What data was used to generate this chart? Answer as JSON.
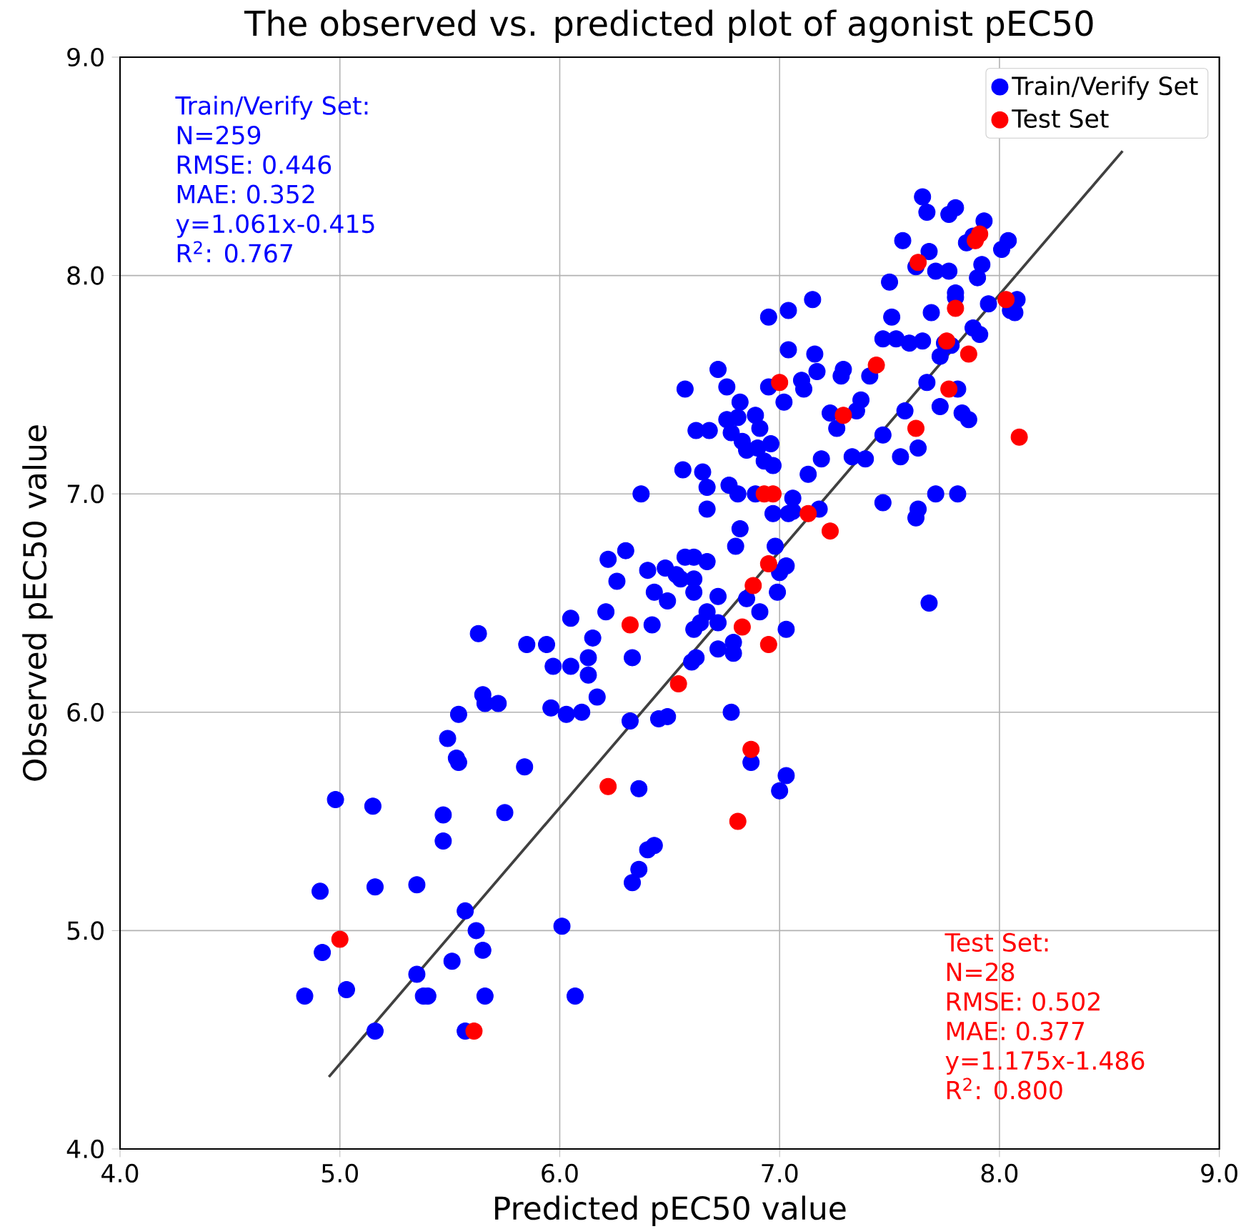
{
  "chart_data": {
    "type": "scatter",
    "title": "The observed vs. predicted plot of agonist pEC50",
    "xlabel": "Predicted pEC50 value",
    "ylabel": "Observed pEC50 value",
    "xlim": [
      4,
      9
    ],
    "ylim": [
      4,
      9
    ],
    "xticks": [
      {
        "value": 4,
        "label": "4.0"
      },
      {
        "value": 5,
        "label": "5.0"
      },
      {
        "value": 6,
        "label": "6.0"
      },
      {
        "value": 7,
        "label": "7.0"
      },
      {
        "value": 8,
        "label": "8.0"
      },
      {
        "value": 9,
        "label": "9.0"
      }
    ],
    "yticks": [
      {
        "value": 4,
        "label": "4.0"
      },
      {
        "value": 5,
        "label": "5.0"
      },
      {
        "value": 6,
        "label": "6.0"
      },
      {
        "value": 7,
        "label": "7.0"
      },
      {
        "value": 8,
        "label": "8.0"
      },
      {
        "value": 9,
        "label": "9.0"
      }
    ],
    "grid": true,
    "legend": "top right",
    "marker": "circle",
    "annotations": [
      "Train/Verify Set:",
      "N=259",
      "RMSE: 0.446",
      "MAE: 0.352",
      "y=1.061x-0.415",
      "R$^{2}$: 0.767",
      "Test Set:",
      "N=28",
      "RMSE: 0.502",
      "MAE: 0.377",
      "y=1.175x-1.486",
      "R$^{2}$: 0.800"
    ],
    "series": [
      {
        "name": "Train/Verify Set",
        "color": "#0000ff",
        "x": [
          4.84,
          4.92,
          4.91,
          4.98,
          5.03,
          5.16,
          5.16,
          5.15,
          5.35,
          5.35,
          5.38,
          5.4,
          5.51,
          5.49,
          5.53,
          5.54,
          5.54,
          5.47,
          5.47,
          5.57,
          5.57,
          5.62,
          5.65,
          5.66,
          5.63,
          5.65,
          5.66,
          5.72,
          5.75,
          5.84,
          5.85,
          5.94,
          5.96,
          5.97,
          6.01,
          6.03,
          6.07,
          6.05,
          6.05,
          6.1,
          6.13,
          6.15,
          6.13,
          6.17,
          6.21,
          6.26,
          6.22,
          6.3,
          6.36,
          6.33,
          6.32,
          6.36,
          6.33,
          6.37,
          6.43,
          6.4,
          6.4,
          6.42,
          6.43,
          6.45,
          6.49,
          6.49,
          6.48,
          6.57,
          6.61,
          6.67,
          6.53,
          6.55,
          6.57,
          6.56,
          6.61,
          6.61,
          6.6,
          6.62,
          6.61,
          6.67,
          6.67,
          6.65,
          6.62,
          6.68,
          6.64,
          6.67,
          6.72,
          6.72,
          6.72,
          6.72,
          6.76,
          6.76,
          6.77,
          6.78,
          6.8,
          6.79,
          6.79,
          6.81,
          6.81,
          6.78,
          6.83,
          6.82,
          6.82,
          6.85,
          6.87,
          6.85,
          6.89,
          6.91,
          6.89,
          6.9,
          6.91,
          6.93,
          6.95,
          6.95,
          6.96,
          6.97,
          6.97,
          6.98,
          7.0,
          6.99,
          7.0,
          7.03,
          7.03,
          7.03,
          7.04,
          7.04,
          7.04,
          7.02,
          7.06,
          7.06,
          7.1,
          7.11,
          7.13,
          7.15,
          7.16,
          7.17,
          7.19,
          7.18,
          7.23,
          7.26,
          7.29,
          7.28,
          7.33,
          7.35,
          7.37,
          7.39,
          7.41,
          7.47,
          7.47,
          7.47,
          7.5,
          7.51,
          7.53,
          7.55,
          7.56,
          7.57,
          7.59,
          7.62,
          7.63,
          7.63,
          7.65,
          7.62,
          7.65,
          7.67,
          7.68,
          7.67,
          7.69,
          7.71,
          7.71,
          7.68,
          7.73,
          7.73,
          7.77,
          7.77,
          7.8,
          7.78,
          7.81,
          7.83,
          7.86,
          7.9,
          7.92,
          7.95,
          8.01,
          8.04,
          8.05,
          8.07,
          8.08,
          7.75,
          7.81,
          7.8,
          7.85,
          7.88,
          7.93,
          7.8,
          7.88,
          7.91
        ],
        "values": [
          4.7,
          4.9,
          5.18,
          5.6,
          4.73,
          4.54,
          5.2,
          5.57,
          4.8,
          5.21,
          4.7,
          4.7,
          4.86,
          5.88,
          5.79,
          5.77,
          5.99,
          5.53,
          5.41,
          5.09,
          4.54,
          5.0,
          4.91,
          4.7,
          6.36,
          6.08,
          6.04,
          6.04,
          5.54,
          5.75,
          6.31,
          6.31,
          6.02,
          6.21,
          5.02,
          5.99,
          4.7,
          6.21,
          6.43,
          6.0,
          6.17,
          6.34,
          6.25,
          6.07,
          6.46,
          6.6,
          6.7,
          6.74,
          5.65,
          6.25,
          5.96,
          5.28,
          5.22,
          7.0,
          5.39,
          5.37,
          6.65,
          6.4,
          6.55,
          5.97,
          5.98,
          6.51,
          6.66,
          6.71,
          6.71,
          6.69,
          6.63,
          6.61,
          7.48,
          7.11,
          6.61,
          6.55,
          6.23,
          6.25,
          6.38,
          7.03,
          6.93,
          7.1,
          7.29,
          7.29,
          6.41,
          6.46,
          6.29,
          6.41,
          6.53,
          7.57,
          7.49,
          7.34,
          7.04,
          7.28,
          6.76,
          6.27,
          6.32,
          7.35,
          7.0,
          6.0,
          7.24,
          7.42,
          6.84,
          6.52,
          5.77,
          7.2,
          7.0,
          6.46,
          7.36,
          7.21,
          7.3,
          7.15,
          7.81,
          7.49,
          7.23,
          7.13,
          6.91,
          6.76,
          6.64,
          6.55,
          5.64,
          5.71,
          6.67,
          6.38,
          6.91,
          7.66,
          7.84,
          7.42,
          6.92,
          6.98,
          7.52,
          7.48,
          7.09,
          7.89,
          7.64,
          7.56,
          7.16,
          6.93,
          7.37,
          7.3,
          7.57,
          7.54,
          7.17,
          7.38,
          7.43,
          7.16,
          7.54,
          7.27,
          6.96,
          7.71,
          7.97,
          7.81,
          7.71,
          7.17,
          8.16,
          7.38,
          7.69,
          6.89,
          6.93,
          7.21,
          7.7,
          8.04,
          8.36,
          8.29,
          8.11,
          7.51,
          7.83,
          8.02,
          7.0,
          6.5,
          7.63,
          7.4,
          8.28,
          8.02,
          7.92,
          7.68,
          7.48,
          7.37,
          7.34,
          7.99,
          8.05,
          7.87,
          8.12,
          8.16,
          7.84,
          7.83,
          7.89,
          7.69,
          7.0,
          7.9,
          8.15,
          8.18,
          8.25,
          8.31,
          7.76,
          7.73
        ]
      },
      {
        "name": "Test Set",
        "color": "#ff0000",
        "x": [
          5.0,
          5.61,
          6.22,
          6.32,
          6.54,
          6.81,
          6.83,
          6.87,
          6.88,
          6.95,
          6.95,
          6.93,
          6.97,
          7.0,
          7.13,
          7.23,
          7.29,
          7.44,
          7.62,
          7.63,
          7.76,
          7.77,
          7.8,
          7.86,
          7.89,
          7.91,
          8.03,
          8.09
        ],
        "values": [
          4.96,
          4.54,
          5.66,
          6.4,
          6.13,
          5.5,
          6.39,
          5.83,
          6.58,
          6.31,
          6.68,
          7.0,
          7.0,
          7.51,
          6.91,
          6.83,
          7.36,
          7.59,
          7.3,
          8.06,
          7.7,
          7.48,
          7.85,
          7.64,
          8.16,
          8.19,
          7.89,
          7.26
        ]
      },
      {
        "type": "line",
        "marker": "none",
        "color": "#404040",
        "x": [
          4.95,
          8.56
        ],
        "values": [
          4.33,
          8.57
        ]
      }
    ]
  }
}
